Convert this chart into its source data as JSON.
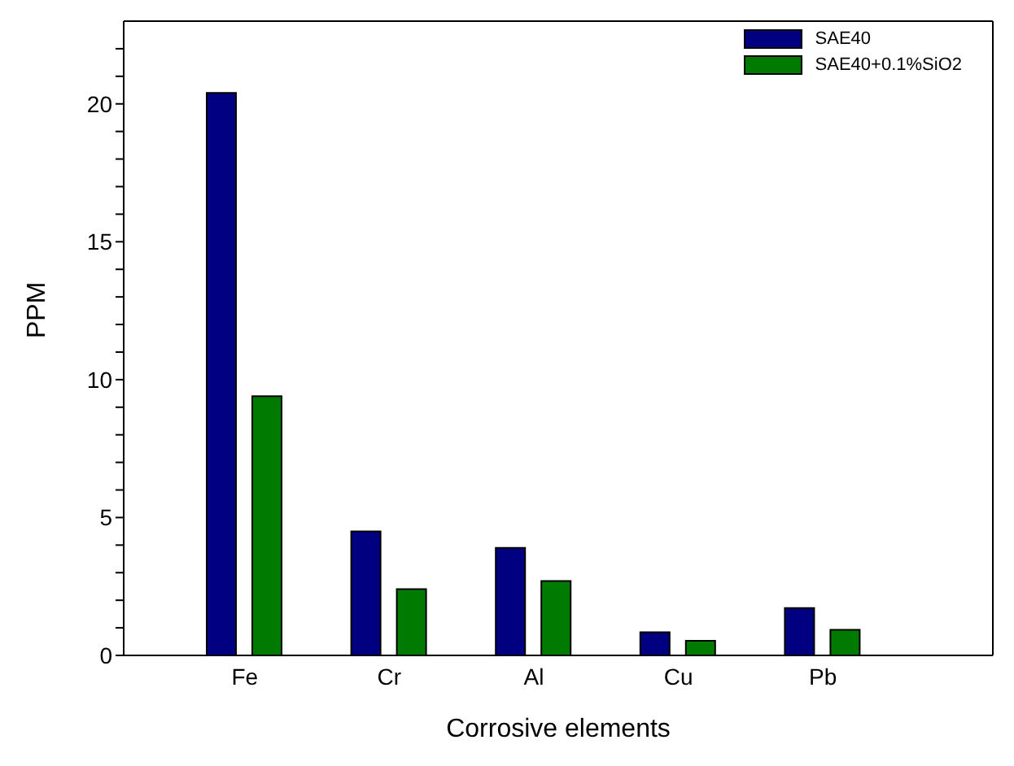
{
  "chart_data": {
    "type": "bar",
    "xlabel": "Corrosive elements",
    "ylabel": "PPM",
    "categories": [
      "Fe",
      "Cr",
      "Al",
      "Cu",
      "Pb"
    ],
    "series": [
      {
        "name": "SAE40",
        "color": "#000080",
        "values": [
          20.4,
          4.5,
          3.9,
          0.84,
          1.72
        ]
      },
      {
        "name": "SAE40+0.1%SiO2",
        "color": "#007a00",
        "values": [
          9.4,
          2.4,
          2.7,
          0.53,
          0.93
        ]
      }
    ],
    "ylim": [
      0,
      23
    ],
    "yticks": [
      0,
      {
        "value": 1,
        "label": null
      },
      {
        "value": 2,
        "label": null
      },
      {
        "value": 3,
        "label": null
      },
      {
        "value": 4,
        "label": null
      },
      5,
      {
        "value": 6,
        "label": null
      },
      {
        "value": 7,
        "label": null
      },
      {
        "value": 8,
        "label": null
      },
      {
        "value": 9,
        "label": null
      },
      10,
      {
        "value": 11,
        "label": null
      },
      {
        "value": 12,
        "label": null
      },
      {
        "value": 13,
        "label": null
      },
      {
        "value": 14,
        "label": null
      },
      15,
      {
        "value": 16,
        "label": null
      },
      {
        "value": 17,
        "label": null
      },
      {
        "value": 18,
        "label": null
      },
      {
        "value": 19,
        "label": null
      },
      20,
      {
        "value": 21,
        "label": null
      },
      {
        "value": 22,
        "label": null
      }
    ],
    "grid": false,
    "legend": "top right"
  }
}
